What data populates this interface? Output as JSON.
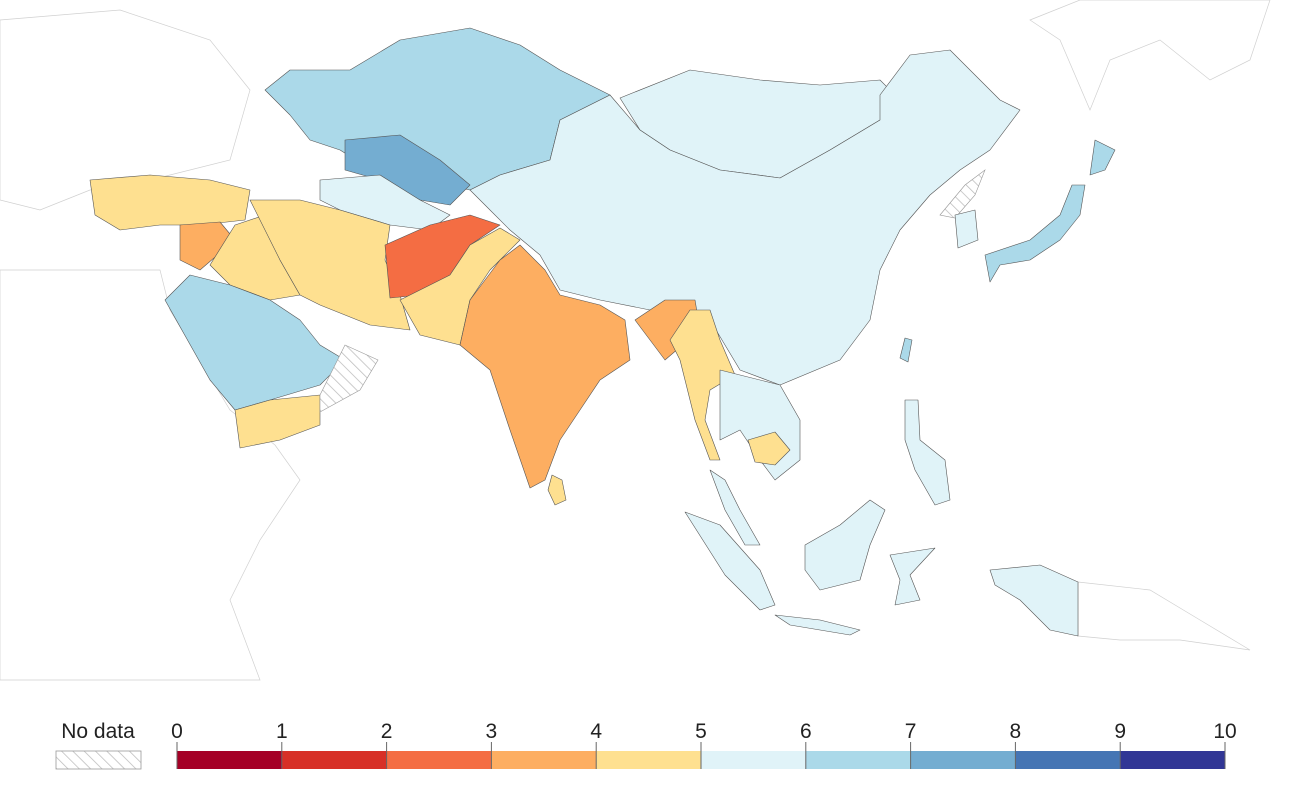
{
  "legend": {
    "no_data_label": "No data",
    "ticks": [
      0,
      1,
      2,
      3,
      4,
      5,
      6,
      7,
      8,
      9,
      10
    ],
    "colors": [
      "#a50026",
      "#d73027",
      "#f46d43",
      "#fdae61",
      "#fee090",
      "#e0f3f8",
      "#abd9e9",
      "#74add1",
      "#4575b4",
      "#313695"
    ]
  }
}
